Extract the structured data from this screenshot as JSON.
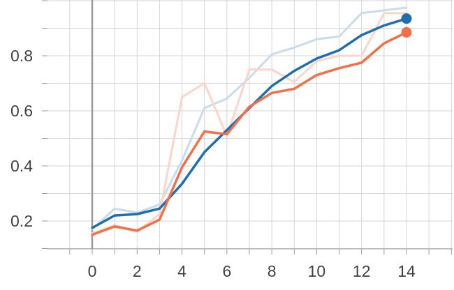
{
  "chart_data": {
    "type": "line",
    "xlim": [
      -2,
      16
    ],
    "ylim": [
      0.1,
      1.0
    ],
    "x_ticks": [
      0,
      2,
      4,
      6,
      8,
      10,
      12,
      14
    ],
    "x_tick_labels": [
      "0",
      "2",
      "4",
      "6",
      "8",
      "10",
      "12",
      "14"
    ],
    "y_ticks": [
      0.2,
      0.4,
      0.6,
      0.8
    ],
    "y_tick_labels": [
      "0.2",
      "0.4",
      "0.6",
      "0.8"
    ],
    "grid": true,
    "x": [
      0,
      1,
      2,
      3,
      4,
      5,
      6,
      7,
      8,
      9,
      10,
      11,
      12,
      13,
      14
    ],
    "series": [
      {
        "color": "#1f6fb0",
        "raw_color": "#c9dcee",
        "raw": [
          0.17,
          0.245,
          0.23,
          0.26,
          0.42,
          0.61,
          0.645,
          0.72,
          0.805,
          0.83,
          0.86,
          0.87,
          0.955,
          0.965,
          0.975
        ],
        "smoothed": [
          0.175,
          0.22,
          0.225,
          0.245,
          0.335,
          0.45,
          0.53,
          0.61,
          0.69,
          0.745,
          0.79,
          0.82,
          0.875,
          0.91,
          0.935
        ]
      },
      {
        "color": "#f07048",
        "raw_color": "#fcd6ca",
        "raw": [
          0.155,
          0.185,
          0.16,
          0.225,
          0.65,
          0.7,
          0.51,
          0.75,
          0.75,
          0.705,
          0.78,
          0.8,
          0.8,
          0.955,
          0.955
        ],
        "smoothed": [
          0.15,
          0.18,
          0.165,
          0.205,
          0.395,
          0.525,
          0.515,
          0.615,
          0.665,
          0.68,
          0.73,
          0.755,
          0.775,
          0.845,
          0.885
        ]
      }
    ]
  }
}
